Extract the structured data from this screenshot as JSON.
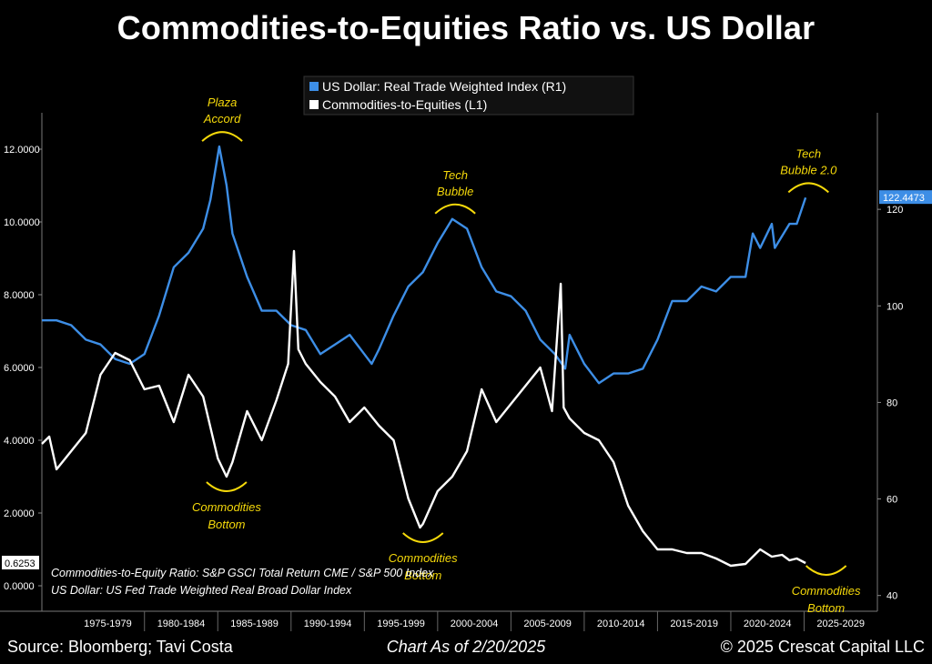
{
  "title": "Commodities-to-Equities Ratio vs. US Dollar",
  "footer": {
    "source": "Source: Bloomberg; Tavi Costa",
    "as_of": "Chart As of 2/20/2025",
    "copyright": "© 2025 Crescat Capital LLC"
  },
  "colors": {
    "dollar": "#3d8ee6",
    "ratio": "#ffffff",
    "annotation": "#f5d90a",
    "background": "#000000"
  },
  "notes": [
    "Commodities-to-Equity Ratio: S&P GSCI Total Return CME / S&P 500 Index",
    "US Dollar: US Fed Trade Weighted Real Broad Dollar Index"
  ],
  "last_values": {
    "ratio": "0.6253",
    "dollar": "122.4473"
  },
  "chart_data": {
    "type": "line",
    "x_categories": [
      "1975-1979",
      "1980-1984",
      "1985-1989",
      "1990-1994",
      "1995-1999",
      "2000-2004",
      "2005-2009",
      "2010-2014",
      "2015-2019",
      "2020-2024",
      "2025-2029"
    ],
    "xlim": [
      1973.0,
      2030.0
    ],
    "left_axis": {
      "ylim": [
        -0.4,
        13.0
      ],
      "ticks": [
        "0.0000",
        "2.0000",
        "4.0000",
        "6.0000",
        "8.0000",
        "10.0000",
        "12.0000"
      ],
      "tick_values": [
        0,
        2,
        4,
        6,
        8,
        10,
        12
      ]
    },
    "right_axis": {
      "ylim": [
        39,
        140
      ],
      "ticks": [
        "40",
        "60",
        "80",
        "100",
        "120"
      ],
      "tick_values": [
        40,
        60,
        80,
        100,
        120
      ]
    },
    "series": [
      {
        "name": "US Dollar: Real Trade Weighted Index (R1)",
        "axis": "right",
        "x": [
          1973.0,
          1974.0,
          1975.0,
          1976.0,
          1977.0,
          1978.0,
          1979.0,
          1980.0,
          1981.0,
          1982.0,
          1983.0,
          1984.0,
          1984.5,
          1985.1,
          1985.6,
          1986.0,
          1987.0,
          1988.0,
          1989.0,
          1990.0,
          1991.0,
          1992.0,
          1993.0,
          1994.0,
          1995.0,
          1995.5,
          1996.0,
          1997.0,
          1998.0,
          1999.0,
          2000.0,
          2001.0,
          2002.0,
          2003.0,
          2004.0,
          2005.0,
          2006.0,
          2007.0,
          2008.0,
          2008.7,
          2009.0,
          2010.0,
          2011.0,
          2012.0,
          2013.0,
          2014.0,
          2015.0,
          2016.0,
          2017.0,
          2018.0,
          2019.0,
          2020.0,
          2021.0,
          2021.5,
          2022.0,
          2022.8,
          2023.0,
          2024.0,
          2024.5,
          2025.1
        ],
        "y": [
          97,
          97,
          96,
          93,
          92,
          89,
          88,
          90,
          98,
          108,
          111,
          116,
          122,
          133,
          125,
          115,
          106,
          99,
          99,
          96,
          95,
          90,
          92,
          94,
          90,
          88,
          91,
          98,
          104,
          107,
          113,
          118,
          116,
          108,
          103,
          102,
          99,
          93,
          90,
          87,
          94,
          88,
          84,
          86,
          86,
          87,
          93,
          101,
          101,
          104,
          103,
          106,
          106,
          115,
          112,
          117,
          112,
          117,
          117,
          122.4473
        ]
      },
      {
        "name": "Commodities-to-Equities (L1)",
        "axis": "left",
        "x": [
          1973.0,
          1973.5,
          1974.0,
          1975.0,
          1976.0,
          1977.0,
          1978.0,
          1979.0,
          1980.0,
          1981.0,
          1982.0,
          1983.0,
          1984.0,
          1985.0,
          1985.6,
          1986.0,
          1987.0,
          1988.0,
          1989.0,
          1989.8,
          1990.2,
          1990.5,
          1991.0,
          1992.0,
          1993.0,
          1994.0,
          1995.0,
          1996.0,
          1997.0,
          1998.0,
          1998.8,
          1999.0,
          2000.0,
          2001.0,
          2002.0,
          2003.0,
          2004.0,
          2005.0,
          2006.0,
          2007.0,
          2007.8,
          2008.4,
          2008.6,
          2009.0,
          2010.0,
          2011.0,
          2012.0,
          2013.0,
          2014.0,
          2015.0,
          2016.0,
          2017.0,
          2018.0,
          2019.0,
          2020.0,
          2021.0,
          2022.0,
          2022.8,
          2023.5,
          2024.0,
          2024.5,
          2025.1
        ],
        "y": [
          3.9,
          4.1,
          3.2,
          3.7,
          4.2,
          5.8,
          6.4,
          6.2,
          5.4,
          5.5,
          4.5,
          5.8,
          5.2,
          3.5,
          3.0,
          3.4,
          4.8,
          4.0,
          5.1,
          6.1,
          9.2,
          6.5,
          6.1,
          5.6,
          5.2,
          4.5,
          4.9,
          4.4,
          4.0,
          2.4,
          1.6,
          1.7,
          2.6,
          3.0,
          3.7,
          5.4,
          4.5,
          5.0,
          5.5,
          6.0,
          4.8,
          8.3,
          4.9,
          4.6,
          4.2,
          4.0,
          3.4,
          2.2,
          1.5,
          1.0,
          1.0,
          0.9,
          0.9,
          0.75,
          0.55,
          0.6,
          1.0,
          0.8,
          0.85,
          0.7,
          0.75,
          0.6253
        ]
      }
    ],
    "annotations": [
      {
        "text": [
          "Plaza",
          "Accord"
        ],
        "x": 1985.3,
        "y_right": 133,
        "position": "above"
      },
      {
        "text": [
          "Tech",
          "Bubble"
        ],
        "x": 2001.2,
        "y_right": 118,
        "position": "above"
      },
      {
        "text": [
          "Tech",
          "Bubble 2.0"
        ],
        "x": 2025.3,
        "y_right": 122.4,
        "position": "above"
      },
      {
        "text": [
          "Commodities",
          "Bottom"
        ],
        "x": 1985.6,
        "y_left": 3.0,
        "position": "below"
      },
      {
        "text": [
          "Commodities",
          "Bottom"
        ],
        "x": 1999.0,
        "y_left": 1.6,
        "position": "below"
      },
      {
        "text": [
          "Commodities",
          "Bottom"
        ],
        "x": 2026.5,
        "y_left": 0.7,
        "position": "below"
      }
    ]
  }
}
